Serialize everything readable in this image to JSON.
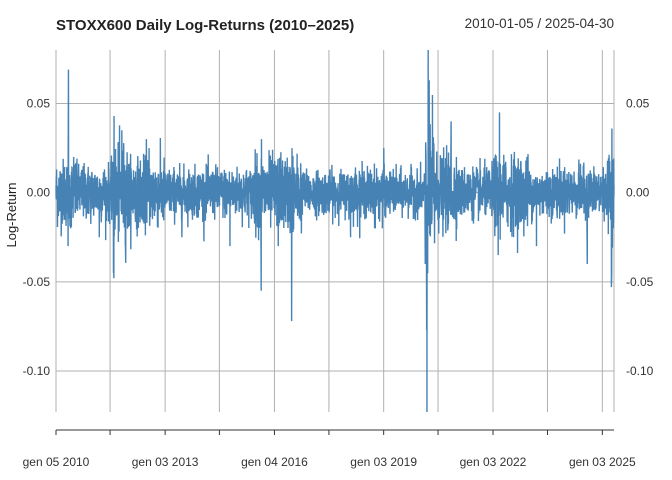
{
  "chart_data": {
    "type": "line",
    "title": "STOXX600 Daily Log-Returns (2010–2025)",
    "date_range": "2010-01-05 / 2025-04-30",
    "xlabel": "",
    "ylabel": "Log-Return",
    "x_start": "2010-01-05",
    "x_end": "2025-04-30",
    "ylim": [
      -0.123,
      0.08
    ],
    "y_ticks": [
      0.05,
      0.0,
      -0.05,
      -0.1
    ],
    "y_tick_labels": [
      "0.05",
      "0.00",
      "-0.05",
      "-0.10"
    ],
    "x_tick_labels": [
      "gen 05 2010",
      "gen 03 2013",
      "gen 04 2016",
      "gen 03 2019",
      "gen 03 2022",
      "gen 03 2025"
    ],
    "x_tick_dates": [
      "2010-01-05",
      "2013-01-03",
      "2016-01-04",
      "2019-01-03",
      "2022-01-03",
      "2025-01-03"
    ],
    "minor_tick_dates": [
      "2011-07-01",
      "2014-07-01",
      "2017-07-03",
      "2020-07-01",
      "2023-07-03"
    ],
    "grid": true,
    "series_color": "#4682b4",
    "series": [
      {
        "values_description_points": [
          [
            "2010-01-05",
            0.004
          ],
          [
            "2010-05-06",
            -0.03
          ],
          [
            "2010-05-10",
            0.069
          ],
          [
            "2010-06-01",
            -0.02
          ],
          [
            "2010-07-01",
            0.02
          ],
          [
            "2011-01-01",
            0.01
          ],
          [
            "2011-03-15",
            -0.025
          ],
          [
            "2011-08-04",
            -0.045
          ],
          [
            "2011-08-08",
            -0.048
          ],
          [
            "2011-08-10",
            0.043
          ],
          [
            "2011-10-27",
            0.035
          ],
          [
            "2011-12-01",
            -0.03
          ],
          [
            "2012-06-29",
            0.03
          ],
          [
            "2012-07-26",
            0.025
          ],
          [
            "2013-06-20",
            -0.025
          ],
          [
            "2014-10-15",
            -0.03
          ],
          [
            "2015-08-24",
            -0.055
          ],
          [
            "2015-08-27",
            0.03
          ],
          [
            "2016-02-11",
            -0.03
          ],
          [
            "2016-06-24",
            -0.072
          ],
          [
            "2016-06-28",
            0.025
          ],
          [
            "2018-02-05",
            -0.025
          ],
          [
            "2018-10-11",
            -0.02
          ],
          [
            "2018-12-21",
            -0.02
          ],
          [
            "2019-01-04",
            0.025
          ],
          [
            "2020-02-24",
            -0.04
          ],
          [
            "2020-03-09",
            -0.077
          ],
          [
            "2020-03-12",
            -0.123
          ],
          [
            "2020-03-24",
            0.081
          ],
          [
            "2020-04-01",
            0.04
          ],
          [
            "2020-11-09",
            0.04
          ],
          [
            "2021-01-01",
            0.02
          ],
          [
            "2022-02-24",
            -0.035
          ],
          [
            "2022-03-09",
            0.045
          ],
          [
            "2022-05-01",
            -0.03
          ],
          [
            "2023-03-15",
            -0.03
          ],
          [
            "2024-08-05",
            -0.04
          ],
          [
            "2025-04-04",
            -0.053
          ],
          [
            "2025-04-07",
            -0.045
          ],
          [
            "2025-04-09",
            0.036
          ],
          [
            "2025-04-30",
            0.004
          ]
        ]
      }
    ]
  }
}
